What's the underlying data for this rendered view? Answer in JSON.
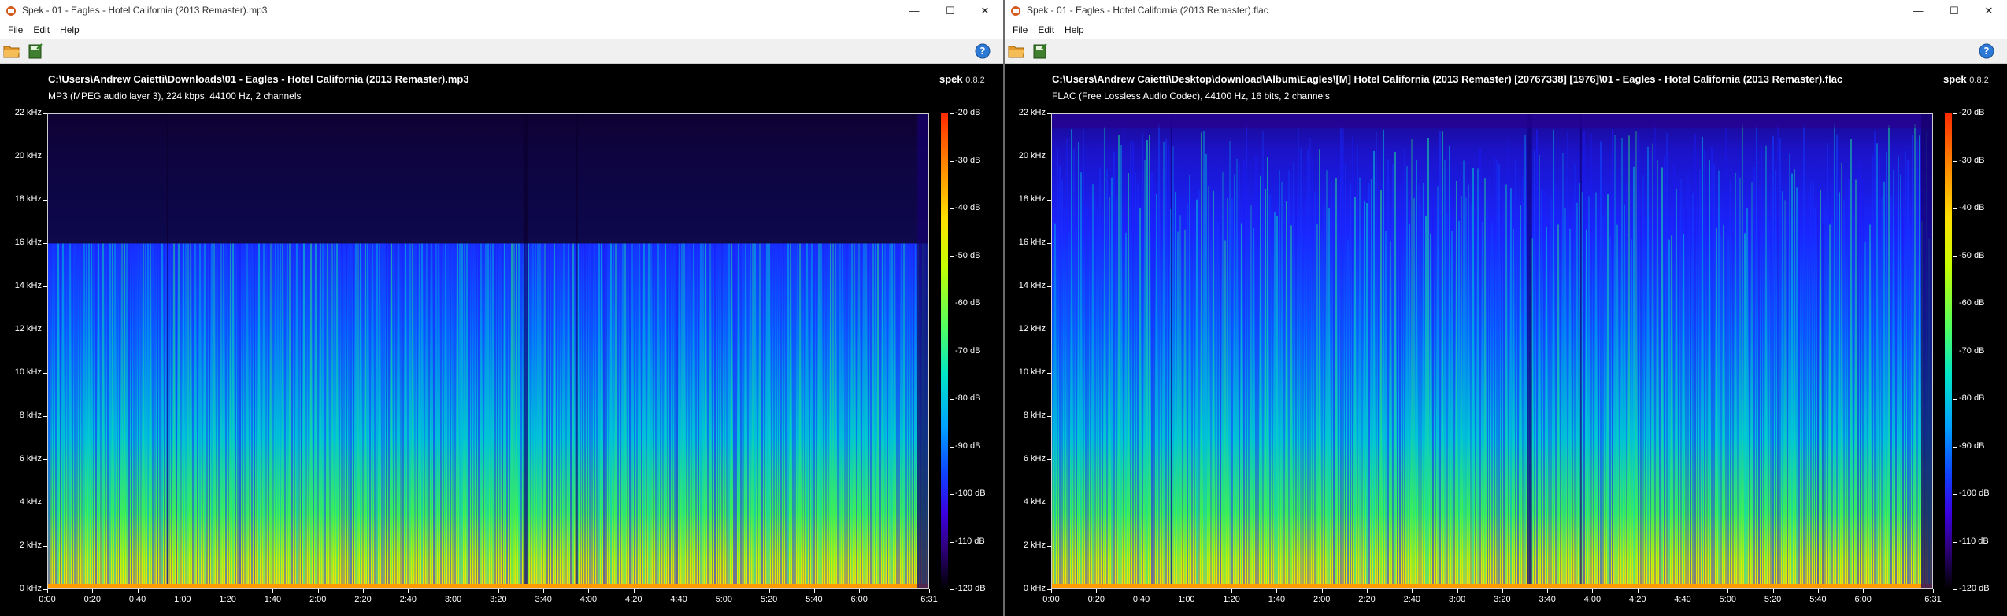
{
  "windows": [
    {
      "title": "Spek - 01 - Eagles - Hotel California (2013 Remaster).mp3",
      "menu": [
        "File",
        "Edit",
        "Help"
      ],
      "file_path": "C:\\Users\\Andrew Caietti\\Downloads\\01 - Eagles - Hotel California (2013 Remaster).mp3",
      "file_info": "MP3 (MPEG audio layer 3), 224 kbps, 44100 Hz, 2 channels",
      "cutoff_khz": 16
    },
    {
      "title": "Spek - 01 - Eagles - Hotel California (2013 Remaster).flac",
      "menu": [
        "File",
        "Edit",
        "Help"
      ],
      "file_path": "C:\\Users\\Andrew Caietti\\Desktop\\download\\Album\\Eagles\\[M] Hotel California (2013 Remaster) [20767338] [1976]\\01 - Eagles - Hotel California (2013 Remaster).flac",
      "file_info": "FLAC (Free Lossless Audio Codec), 44100 Hz, 16 bits, 2 channels",
      "cutoff_khz": 22
    }
  ],
  "brand": {
    "name": "spek",
    "version": "0.8.2"
  },
  "window_controls": {
    "minimize": "—",
    "maximize": "☐",
    "close": "✕"
  },
  "icons": {
    "open": "folder-open-icon",
    "save": "save-image-icon",
    "help": "help-icon"
  },
  "chart_data": [
    {
      "type": "heatmap",
      "title": "",
      "ylabel": "",
      "xlabel": "",
      "y_ticks": [
        "0 kHz",
        "2 kHz",
        "4 kHz",
        "6 kHz",
        "8 kHz",
        "10 kHz",
        "12 kHz",
        "14 kHz",
        "16 kHz",
        "18 kHz",
        "20 kHz",
        "22 kHz"
      ],
      "x_ticks": [
        "0:00",
        "0:20",
        "0:40",
        "1:00",
        "1:20",
        "1:40",
        "2:00",
        "2:20",
        "2:40",
        "3:00",
        "3:20",
        "3:40",
        "4:00",
        "4:20",
        "4:40",
        "5:00",
        "5:20",
        "5:40",
        "6:00",
        "6:31"
      ],
      "db_ticks": [
        "-20 dB",
        "-30 dB",
        "-40 dB",
        "-50 dB",
        "-60 dB",
        "-70 dB",
        "-80 dB",
        "-90 dB",
        "-100 dB",
        "-110 dB",
        "-120 dB"
      ],
      "ylim_khz": [
        0,
        22
      ],
      "xlim_seconds": [
        0,
        391
      ],
      "db_range": [
        -120,
        -20
      ],
      "lowpass_cutoff_khz": 16
    },
    {
      "type": "heatmap",
      "title": "",
      "ylabel": "",
      "xlabel": "",
      "y_ticks": [
        "0 kHz",
        "2 kHz",
        "4 kHz",
        "6 kHz",
        "8 kHz",
        "10 kHz",
        "12 kHz",
        "14 kHz",
        "16 kHz",
        "18 kHz",
        "20 kHz",
        "22 kHz"
      ],
      "x_ticks": [
        "0:00",
        "0:20",
        "0:40",
        "1:00",
        "1:20",
        "1:40",
        "2:00",
        "2:20",
        "2:40",
        "3:00",
        "3:20",
        "3:40",
        "4:00",
        "4:20",
        "4:40",
        "5:00",
        "5:20",
        "5:40",
        "6:00",
        "6:31"
      ],
      "db_ticks": [
        "-20 dB",
        "-30 dB",
        "-40 dB",
        "-50 dB",
        "-60 dB",
        "-70 dB",
        "-80 dB",
        "-90 dB",
        "-100 dB",
        "-110 dB",
        "-120 dB"
      ],
      "ylim_khz": [
        0,
        22
      ],
      "xlim_seconds": [
        0,
        391
      ],
      "db_range": [
        -120,
        -20
      ],
      "lowpass_cutoff_khz": 22
    }
  ]
}
